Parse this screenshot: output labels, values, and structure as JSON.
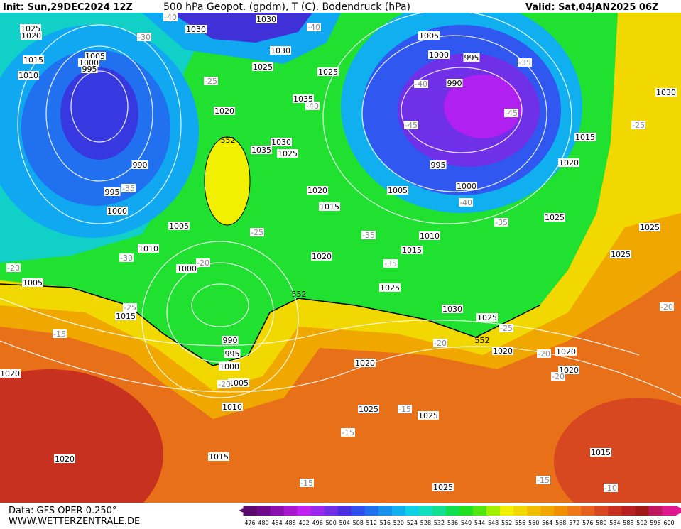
{
  "header": {
    "init": "Init: Sun,29DEC2024 12Z",
    "title": "500 hPa Geopot. (gpdm), T (C), Bodendruck (hPa)",
    "valid": "Valid: Sat,04JAN2025 06Z"
  },
  "footer": {
    "data": "Data: GFS OPER 0.250°",
    "site": "WWW.WETTERZENTRALE.DE"
  },
  "pressure_labels": [
    1030,
    1030,
    1025,
    1020,
    1015,
    1010,
    1005,
    1000,
    995,
    1030,
    1025,
    1025,
    1005,
    1000,
    995,
    990,
    1035,
    1020,
    1030,
    1035,
    1025,
    990,
    995,
    1000,
    1015,
    1020,
    995,
    1000,
    1005,
    1020,
    1015,
    1025,
    1025,
    1025,
    1005,
    1010,
    1000,
    1010,
    1015,
    1020,
    1025,
    1005,
    1015,
    1030,
    1025,
    1020,
    1020,
    990,
    995,
    1000,
    1005,
    1020,
    1020,
    1010,
    1025,
    1025,
    1020,
    1015,
    1015,
    1025,
    1030,
    1020
  ],
  "temperature_labels": [
    -40,
    -30,
    -40,
    -35,
    -25,
    -40,
    -40,
    -45,
    -45,
    -25,
    -35,
    -40,
    -35,
    -25,
    -35,
    -30,
    -20,
    -20,
    -35,
    -25,
    -15,
    -20,
    -25,
    -20,
    -20,
    -20,
    -20,
    -15,
    -15,
    -15,
    -15,
    -10
  ],
  "geopotential_labels": [
    552,
    552,
    552
  ],
  "colorbar": {
    "values": [
      476,
      480,
      484,
      488,
      492,
      496,
      500,
      504,
      508,
      512,
      516,
      520,
      524,
      528,
      532,
      536,
      540,
      544,
      548,
      552,
      556,
      560,
      564,
      568,
      572,
      576,
      580,
      584,
      588,
      592,
      596,
      600
    ],
    "colors": [
      "#5a0a6e",
      "#6e0a8c",
      "#8a10b0",
      "#a818d0",
      "#c020f0",
      "#9a28f0",
      "#7030e8",
      "#4a30e0",
      "#3050f0",
      "#2070f0",
      "#1890f0",
      "#10b0f0",
      "#10d0e8",
      "#10e0c0",
      "#10e090",
      "#10e050",
      "#20e020",
      "#50e810",
      "#a0f000",
      "#f0f000",
      "#f0d800",
      "#f0c000",
      "#f0a800",
      "#f09000",
      "#f07818",
      "#e86020",
      "#d84820",
      "#c83020",
      "#b82020",
      "#a01818",
      "#c01860",
      "#e01890"
    ]
  }
}
